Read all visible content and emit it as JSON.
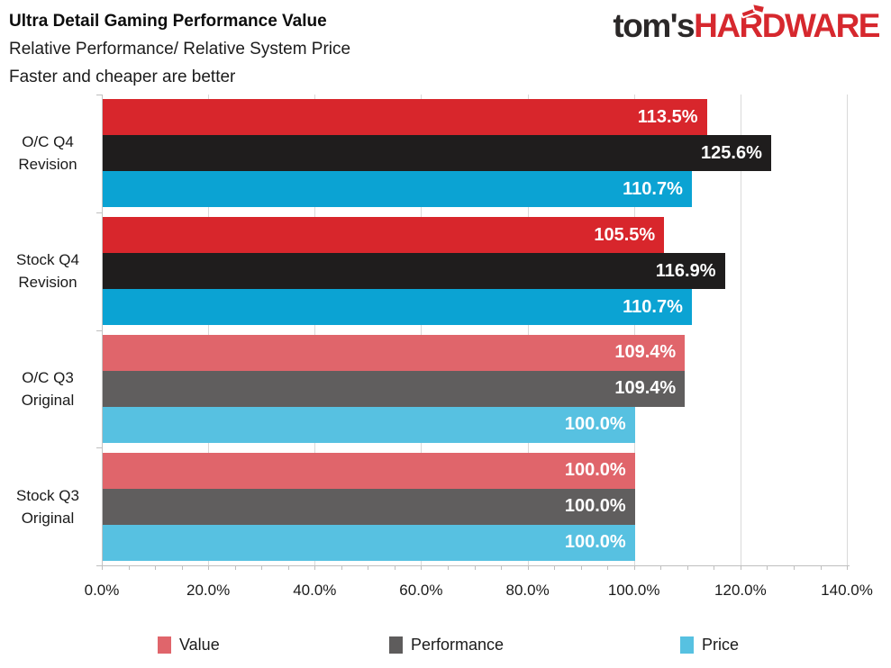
{
  "header": {
    "title": "Ultra Detail Gaming Performance Value",
    "subtitle": "Relative Performance/ Relative System Price",
    "note": "Faster and cheaper are better"
  },
  "logo": {
    "prefix": "tom's",
    "suffix": "HARDWARE"
  },
  "chart_data": {
    "type": "bar",
    "orientation": "horizontal",
    "title": "Ultra Detail Gaming Performance Value",
    "subtitle": "Relative Performance/ Relative System Price",
    "note": "Faster and cheaper are better",
    "xlabel": "",
    "ylabel": "",
    "xlim": [
      0,
      140
    ],
    "x_tick_values": [
      0,
      20,
      40,
      60,
      80,
      100,
      120,
      140
    ],
    "x_tick_labels": [
      "0.0%",
      "20.0%",
      "40.0%",
      "60.0%",
      "80.0%",
      "100.0%",
      "120.0%",
      "140.0%"
    ],
    "minor_tick_step_pct": 5,
    "grid": true,
    "legend_position": "bottom",
    "categories": [
      "O/C Q4 Revision",
      "Stock Q4 Revision",
      "O/C Q3 Original",
      "Stock Q3 Original"
    ],
    "category_label_lines": [
      [
        "O/C Q4",
        "Revision"
      ],
      [
        "Stock Q4",
        "Revision"
      ],
      [
        "O/C Q3",
        "Original"
      ],
      [
        "Stock Q3",
        "Original"
      ]
    ],
    "group_styles": [
      "vivid",
      "vivid",
      "muted",
      "muted"
    ],
    "series": [
      {
        "name": "Value",
        "values": [
          113.5,
          105.5,
          109.4,
          100.0
        ]
      },
      {
        "name": "Performance",
        "values": [
          125.6,
          116.9,
          109.4,
          100.0
        ]
      },
      {
        "name": "Price",
        "values": [
          110.7,
          110.7,
          100.0,
          100.0
        ]
      }
    ],
    "bar_labels": [
      [
        "113.5%",
        "125.6%",
        "110.7%"
      ],
      [
        "105.5%",
        "116.9%",
        "110.7%"
      ],
      [
        "109.4%",
        "109.4%",
        "100.0%"
      ],
      [
        "100.0%",
        "100.0%",
        "100.0%"
      ]
    ]
  },
  "legend": {
    "items": [
      {
        "label": "Value",
        "color": "#e0656b"
      },
      {
        "label": "Performance",
        "color": "#5e5c5c"
      },
      {
        "label": "Price",
        "color": "#57c1e1"
      }
    ]
  },
  "colors": {
    "vivid": {
      "Value": "#d8262c",
      "Performance": "#1f1d1d",
      "Price": "#0ba3d3"
    },
    "muted": {
      "Value": "#e0656b",
      "Performance": "#605e5e",
      "Price": "#57c1e1"
    },
    "grid": "#d9d9d9",
    "axis": "#bfbfbf",
    "logo_dark": "#2b2828",
    "logo_red": "#d6282e"
  }
}
